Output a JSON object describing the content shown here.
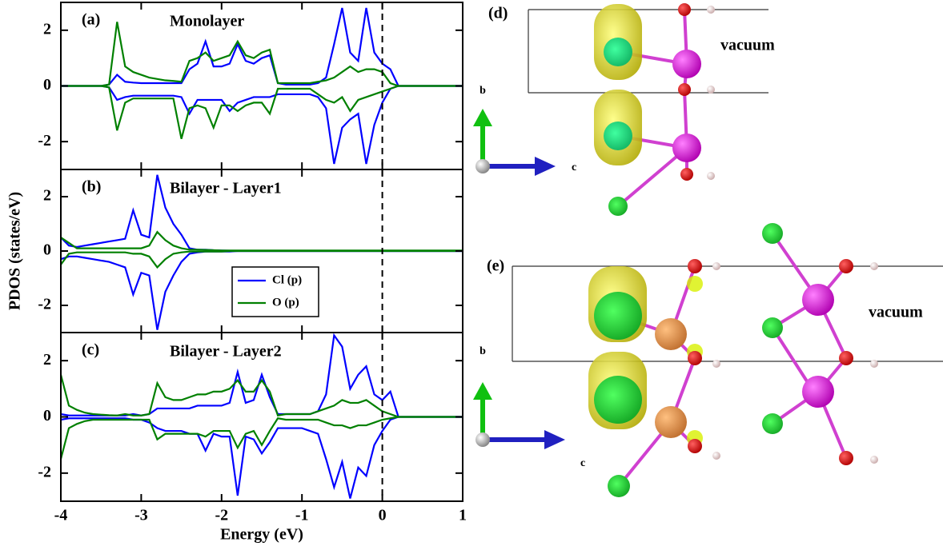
{
  "chart_data": [
    {
      "type": "line",
      "panel_label": "(a)",
      "title": "Monolayer",
      "xlim": [
        -4,
        1
      ],
      "ylim": [
        -3,
        3
      ],
      "yticks": [
        -2,
        0,
        2
      ],
      "vline": 0,
      "x": [
        -4.0,
        -3.9,
        -3.8,
        -3.7,
        -3.6,
        -3.5,
        -3.4,
        -3.3,
        -3.2,
        -3.1,
        -3.0,
        -2.9,
        -2.8,
        -2.7,
        -2.6,
        -2.5,
        -2.4,
        -2.3,
        -2.2,
        -2.1,
        -2.0,
        -1.9,
        -1.8,
        -1.7,
        -1.6,
        -1.5,
        -1.4,
        -1.3,
        -1.2,
        -1.1,
        -1.0,
        -0.9,
        -0.8,
        -0.7,
        -0.6,
        -0.5,
        -0.4,
        -0.3,
        -0.2,
        -0.1,
        0.0,
        0.1,
        0.2,
        0.3,
        0.4,
        0.5,
        0.6,
        0.7,
        0.8,
        0.9,
        1.0
      ],
      "series": [
        {
          "color": "#0000ff",
          "values": [
            0,
            0,
            0,
            0,
            0,
            0,
            0.05,
            0.4,
            0.15,
            0.12,
            0.1,
            0.1,
            0.1,
            0.1,
            0.1,
            0.1,
            0.6,
            0.8,
            1.6,
            0.7,
            0.7,
            0.8,
            1.5,
            0.9,
            0.8,
            1.0,
            1.1,
            0.1,
            0.05,
            0.05,
            0.05,
            0.05,
            0.1,
            0.3,
            1.5,
            2.8,
            1.2,
            0.9,
            2.8,
            1.2,
            0.8,
            0.6,
            0,
            0,
            0,
            0,
            0,
            0,
            0,
            0,
            0
          ],
          "values_down": [
            0,
            0,
            0,
            0,
            0,
            0,
            -0.05,
            -0.5,
            -0.4,
            -0.35,
            -0.35,
            -0.35,
            -0.35,
            -0.35,
            -0.35,
            -0.4,
            -1.0,
            -0.5,
            -0.5,
            -0.5,
            -0.5,
            -0.9,
            -0.6,
            -0.5,
            -0.4,
            -0.4,
            -0.4,
            -0.3,
            -0.3,
            -0.3,
            -0.3,
            -0.3,
            -0.4,
            -0.8,
            -2.8,
            -1.5,
            -1.2,
            -1.0,
            -2.8,
            -1.4,
            -0.6,
            -0.1,
            0,
            0,
            0,
            0,
            0,
            0,
            0,
            0,
            0
          ]
        },
        {
          "color": "#008000",
          "values": [
            0,
            0,
            0,
            0,
            0,
            0,
            0.05,
            2.3,
            0.7,
            0.5,
            0.4,
            0.3,
            0.25,
            0.2,
            0.18,
            0.15,
            0.9,
            1.0,
            1.2,
            0.9,
            1.0,
            1.1,
            1.6,
            1.1,
            1.0,
            1.2,
            1.3,
            0.1,
            0.1,
            0.1,
            0.1,
            0.1,
            0.15,
            0.2,
            0.3,
            0.5,
            0.7,
            0.5,
            0.6,
            0.6,
            0.5,
            0.1,
            0,
            0,
            0,
            0,
            0,
            0,
            0,
            0,
            0
          ],
          "values_down": [
            0,
            0,
            0,
            0,
            0,
            0,
            -0.05,
            -1.6,
            -0.6,
            -0.45,
            -0.45,
            -0.45,
            -0.45,
            -0.45,
            -0.45,
            -1.9,
            -0.8,
            -0.7,
            -0.8,
            -1.5,
            -0.7,
            -0.7,
            -0.9,
            -0.7,
            -0.6,
            -0.6,
            -1.0,
            -0.1,
            -0.1,
            -0.1,
            -0.1,
            -0.1,
            -0.3,
            -0.5,
            -0.6,
            -0.4,
            -0.9,
            -0.5,
            -0.4,
            -0.3,
            -0.2,
            -0.1,
            0,
            0,
            0,
            0,
            0,
            0,
            0,
            0,
            0
          ]
        }
      ]
    },
    {
      "type": "line",
      "panel_label": "(b)",
      "title": "Bilayer - Layer1",
      "ylabel": "PDOS (states/eV)",
      "xlim": [
        -4,
        1
      ],
      "ylim": [
        -3,
        3
      ],
      "yticks": [
        -2,
        0,
        2
      ],
      "vline": 0,
      "legend": "center",
      "x": [
        -4.0,
        -3.9,
        -3.8,
        -3.7,
        -3.6,
        -3.5,
        -3.4,
        -3.3,
        -3.2,
        -3.1,
        -3.0,
        -2.9,
        -2.8,
        -2.7,
        -2.6,
        -2.5,
        -2.4,
        -2.3,
        -2.2,
        -2.1,
        -2.0,
        -1.9,
        -1.8,
        -1.7,
        -1.6,
        -1.5,
        -1.4,
        -1.3,
        -1.2,
        -1.1,
        -1.0,
        -0.9,
        -0.8,
        -0.7,
        -0.6,
        -0.5,
        -0.4,
        -0.3,
        -0.2,
        -0.1,
        0.0,
        0.1,
        0.2,
        0.3,
        0.4,
        0.5,
        0.6,
        0.7,
        0.8,
        0.9,
        1.0
      ],
      "series": [
        {
          "name": "Cl (p)",
          "color": "#0000ff",
          "values": [
            0.5,
            0.2,
            0.15,
            0.2,
            0.25,
            0.3,
            0.35,
            0.4,
            0.45,
            1.5,
            0.6,
            0.5,
            2.8,
            1.6,
            1.0,
            0.6,
            0.1,
            0.05,
            0.05,
            0.03,
            0.02,
            0.01,
            0,
            0,
            0,
            0,
            0,
            0,
            0,
            0,
            0,
            0,
            0,
            0,
            0,
            0,
            0,
            0,
            0,
            0,
            0,
            0,
            0,
            0,
            0,
            0,
            0,
            0,
            0,
            0,
            0
          ],
          "values_down": [
            -0.3,
            -0.2,
            -0.2,
            -0.25,
            -0.3,
            -0.35,
            -0.4,
            -0.5,
            -0.6,
            -1.6,
            -0.8,
            -0.9,
            -2.9,
            -1.5,
            -0.9,
            -0.4,
            -0.1,
            -0.05,
            -0.02,
            -0.02,
            -0.02,
            -0.02,
            0,
            0,
            0,
            0,
            0,
            0,
            0,
            0,
            0,
            0,
            0,
            0,
            0,
            0,
            0,
            0,
            0,
            0,
            0,
            0,
            0,
            0,
            0,
            0,
            0,
            0,
            0,
            0,
            0
          ]
        },
        {
          "name": "O (p)",
          "color": "#008000",
          "values": [
            0.5,
            0.3,
            0.1,
            0.1,
            0.1,
            0.1,
            0.1,
            0.1,
            0.1,
            0.1,
            0.1,
            0.2,
            0.7,
            0.4,
            0.2,
            0.1,
            0.05,
            0.05,
            0.04,
            0.03,
            0.02,
            0.02,
            0.02,
            0.02,
            0.02,
            0.02,
            0.02,
            0.02,
            0.02,
            0.02,
            0.02,
            0.02,
            0.02,
            0.02,
            0.02,
            0.02,
            0.02,
            0.02,
            0.02,
            0.02,
            0.02,
            0.02,
            0.02,
            0.02,
            0.02,
            0.02,
            0.02,
            0.02,
            0.02,
            0.02,
            0.02
          ],
          "values_down": [
            -0.5,
            -0.1,
            -0.05,
            -0.05,
            -0.05,
            -0.05,
            -0.05,
            -0.05,
            -0.05,
            -0.1,
            -0.1,
            -0.2,
            -0.6,
            -0.3,
            -0.1,
            -0.05,
            -0.02,
            -0.02,
            -0.02,
            -0.02,
            -0.02,
            0,
            0,
            0,
            0,
            0,
            0,
            0,
            0,
            0,
            0,
            0,
            0,
            0,
            0,
            0,
            0,
            0,
            0,
            0,
            0,
            0,
            0,
            0,
            0,
            0,
            0,
            0,
            0,
            0,
            0
          ]
        }
      ]
    },
    {
      "type": "line",
      "panel_label": "(c)",
      "title": "Bilayer - Layer2",
      "xlabel": "Energy (eV)",
      "xlim": [
        -4,
        1
      ],
      "ylim": [
        -3,
        3
      ],
      "yticks": [
        -2,
        0,
        2
      ],
      "xticks": [
        -4,
        -3,
        -2,
        -1,
        0,
        1
      ],
      "vline": 0,
      "x": [
        -4.0,
        -3.9,
        -3.8,
        -3.7,
        -3.6,
        -3.5,
        -3.4,
        -3.3,
        -3.2,
        -3.1,
        -3.0,
        -2.9,
        -2.8,
        -2.7,
        -2.6,
        -2.5,
        -2.4,
        -2.3,
        -2.2,
        -2.1,
        -2.0,
        -1.9,
        -1.8,
        -1.7,
        -1.6,
        -1.5,
        -1.4,
        -1.3,
        -1.2,
        -1.1,
        -1.0,
        -0.9,
        -0.8,
        -0.7,
        -0.6,
        -0.5,
        -0.4,
        -0.3,
        -0.2,
        -0.1,
        0.0,
        0.1,
        0.2,
        0.3,
        0.4,
        0.5,
        0.6,
        0.7,
        0.8,
        0.9,
        1.0
      ],
      "series": [
        {
          "color": "#0000ff",
          "values": [
            0.1,
            0.05,
            0.05,
            0.05,
            0.05,
            0.05,
            0.05,
            0.05,
            0.05,
            0.1,
            0.05,
            0.1,
            0.3,
            0.3,
            0.3,
            0.3,
            0.3,
            0.4,
            0.4,
            0.4,
            0.4,
            0.5,
            1.6,
            0.5,
            0.6,
            1.5,
            0.7,
            0.1,
            0.1,
            0.1,
            0.1,
            0.1,
            0.2,
            0.8,
            2.9,
            2.5,
            1.0,
            1.5,
            1.8,
            0.8,
            0.6,
            0.9,
            0,
            0,
            0,
            0,
            0,
            0,
            0,
            0,
            0
          ],
          "values_down": [
            -0.1,
            -0.05,
            -0.05,
            -0.05,
            -0.05,
            -0.05,
            -0.05,
            -0.05,
            -0.05,
            -0.1,
            -0.1,
            -0.2,
            -0.4,
            -0.5,
            -0.5,
            -0.5,
            -0.6,
            -0.6,
            -1.2,
            -0.6,
            -0.7,
            -0.7,
            -2.8,
            -0.7,
            -0.8,
            -1.3,
            -0.9,
            -0.4,
            -0.4,
            -0.4,
            -0.4,
            -0.5,
            -0.6,
            -1.5,
            -2.5,
            -1.6,
            -2.9,
            -1.8,
            -2.1,
            -1.0,
            -0.5,
            -0.1,
            0,
            0,
            0,
            0,
            0,
            0,
            0,
            0,
            0
          ]
        },
        {
          "color": "#008000",
          "values": [
            1.5,
            0.4,
            0.25,
            0.15,
            0.1,
            0.08,
            0.06,
            0.05,
            0.1,
            0.05,
            0.05,
            0.1,
            1.2,
            0.7,
            0.6,
            0.6,
            0.7,
            0.8,
            0.8,
            0.9,
            0.9,
            1.0,
            1.3,
            0.9,
            0.9,
            1.3,
            0.9,
            0.05,
            0.1,
            0.1,
            0.1,
            0.1,
            0.2,
            0.3,
            0.4,
            0.6,
            0.5,
            0.5,
            0.6,
            0.4,
            0.2,
            0.1,
            0,
            0,
            0,
            0,
            0,
            0,
            0,
            0,
            0
          ],
          "values_down": [
            -1.5,
            -0.4,
            -0.25,
            -0.15,
            -0.1,
            -0.1,
            -0.1,
            -0.1,
            -0.1,
            -0.1,
            -0.1,
            -0.1,
            -0.8,
            -0.6,
            -0.6,
            -0.6,
            -0.6,
            -0.6,
            -0.7,
            -0.5,
            -0.5,
            -0.5,
            -1.1,
            -0.6,
            -0.5,
            -1.0,
            -0.5,
            -0.05,
            -0.1,
            -0.1,
            -0.1,
            -0.1,
            -0.1,
            -0.2,
            -0.3,
            -0.3,
            -0.4,
            -0.3,
            -0.3,
            -0.2,
            -0.1,
            -0.05,
            0,
            0,
            0,
            0,
            0,
            0,
            0,
            0,
            0
          ]
        }
      ]
    }
  ],
  "structures": [
    {
      "label": "(d)",
      "note": "vacuum",
      "axes": [
        "b",
        "c"
      ]
    },
    {
      "label": "(e)",
      "note": "vacuum",
      "axes": [
        "b",
        "c"
      ]
    }
  ]
}
